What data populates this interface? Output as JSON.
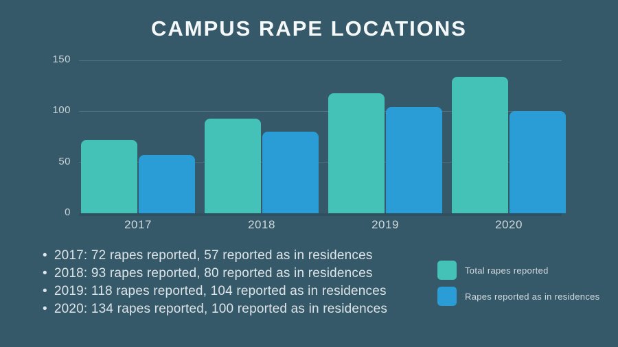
{
  "title": "CAMPUS RAPE LOCATIONS",
  "chart_data": {
    "type": "bar",
    "title": "CAMPUS RAPE LOCATIONS",
    "categories": [
      "2017",
      "2018",
      "2019",
      "2020"
    ],
    "series": [
      {
        "name": "Total rapes reported",
        "color": "#45C2B8",
        "values": [
          72,
          93,
          118,
          134
        ]
      },
      {
        "name": "Rapes reported as in residences",
        "color": "#2A9DD6",
        "values": [
          57,
          80,
          104,
          100
        ]
      }
    ],
    "xlabel": "",
    "ylabel": "",
    "ylim": [
      0,
      150
    ],
    "yticks": [
      0,
      50,
      100,
      150
    ],
    "grid": true,
    "legend_position": "bottom-right"
  },
  "bullets": [
    "2017: 72 rapes reported, 57 reported as in residences",
    "2018: 93 rapes reported, 80 reported as in residences",
    "2019: 118 rapes reported, 104 reported as in residences",
    "2020: 134 rapes reported, 100 reported as in residences"
  ],
  "legend": [
    {
      "label": "Total rapes reported",
      "color": "#45C2B8"
    },
    {
      "label": "Rapes reported as in residences",
      "color": "#2A9DD6"
    }
  ],
  "colors": {
    "background": "#36596A",
    "teal": "#45C2B8",
    "blue": "#2A9DD6",
    "title_text": "#F5F8F9",
    "body_text": "#DDE5E9",
    "axis_text": "#C9D3D9"
  }
}
